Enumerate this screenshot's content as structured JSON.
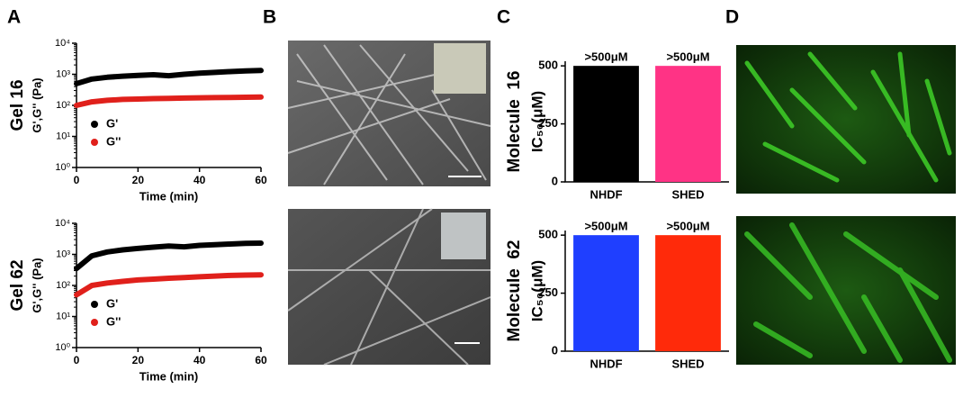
{
  "panel_labels": [
    "A",
    "B",
    "C",
    "D"
  ],
  "chart_data": [
    {
      "type": "line",
      "row_label": "Gel 16",
      "xlabel": "Time (min)",
      "ylabel": "G',G'' (Pa)",
      "log_scale": true,
      "x": [
        0,
        5,
        10,
        15,
        20,
        25,
        30,
        35,
        40,
        45,
        50,
        55,
        60
      ],
      "series": [
        {
          "name": "G'",
          "color": "#000000",
          "values": [
            500,
            700,
            800,
            870,
            920,
            970,
            900,
            1000,
            1080,
            1150,
            1220,
            1280,
            1320
          ]
        },
        {
          "name": "G''",
          "color": "#e0201b",
          "values": [
            100,
            130,
            145,
            155,
            160,
            165,
            168,
            172,
            175,
            178,
            180,
            182,
            185
          ]
        }
      ],
      "xlim": [
        0,
        60
      ],
      "xticks": [
        0,
        20,
        40,
        60
      ],
      "ylim": [
        1,
        10000
      ],
      "yticks": [
        {
          "value": 1,
          "label": "10⁰"
        },
        {
          "value": 10,
          "label": "10¹"
        },
        {
          "value": 100,
          "label": "10²"
        },
        {
          "value": 1000,
          "label": "10³"
        },
        {
          "value": 10000,
          "label": "10⁴"
        }
      ],
      "legend": "lower left"
    },
    {
      "type": "line",
      "row_label": "Gel 62",
      "xlabel": "Time (min)",
      "ylabel": "G',G'' (Pa)",
      "log_scale": true,
      "x": [
        0,
        5,
        10,
        15,
        20,
        25,
        30,
        35,
        40,
        45,
        50,
        55,
        60
      ],
      "series": [
        {
          "name": "G'",
          "color": "#000000",
          "values": [
            350,
            900,
            1200,
            1400,
            1550,
            1700,
            1850,
            1750,
            1950,
            2050,
            2150,
            2250,
            2300
          ]
        },
        {
          "name": "G''",
          "color": "#e0201b",
          "values": [
            50,
            100,
            120,
            135,
            150,
            160,
            170,
            180,
            190,
            200,
            210,
            215,
            220
          ]
        }
      ],
      "xlim": [
        0,
        60
      ],
      "xticks": [
        0,
        20,
        40,
        60
      ],
      "ylim": [
        1,
        10000
      ],
      "yticks": [
        {
          "value": 1,
          "label": "10⁰"
        },
        {
          "value": 10,
          "label": "10¹"
        },
        {
          "value": 100,
          "label": "10²"
        },
        {
          "value": 1000,
          "label": "10³"
        },
        {
          "value": 10000,
          "label": "10⁴"
        }
      ],
      "legend": "lower left"
    },
    {
      "type": "bar",
      "row_label": "Molecule  16",
      "ylabel": "IC₅₀(μM)",
      "categories": [
        "NHDF",
        "SHED"
      ],
      "values": [
        500,
        500
      ],
      "value_labels": [
        ">500μM",
        ">500μM"
      ],
      "colors": [
        "#000000",
        "#ff3385"
      ],
      "ylim": [
        0,
        520
      ],
      "yticks": [
        0,
        250,
        500
      ]
    },
    {
      "type": "bar",
      "row_label": "Molecule  62",
      "ylabel": "IC₅₀(μM)",
      "categories": [
        "NHDF",
        "SHED"
      ],
      "values": [
        500,
        500
      ],
      "value_labels": [
        ">500μM",
        ">500μM"
      ],
      "colors": [
        "#1f3fff",
        "#ff2a0a"
      ],
      "ylim": [
        0,
        520
      ],
      "yticks": [
        0,
        250,
        500
      ]
    }
  ]
}
